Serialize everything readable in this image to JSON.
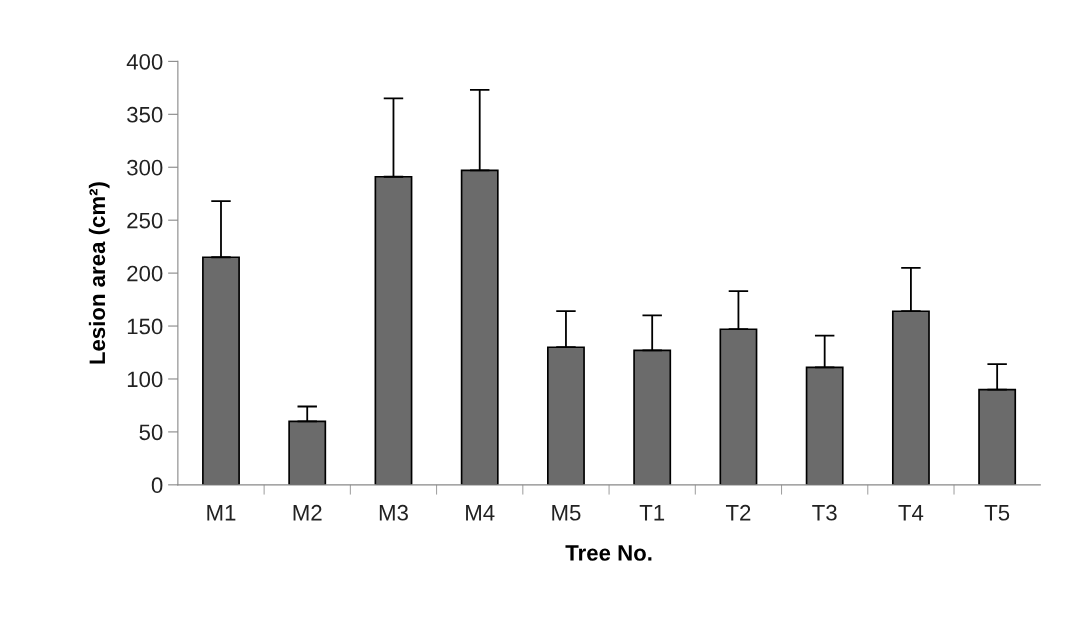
{
  "chart_data": {
    "type": "bar",
    "xlabel": "Tree No.",
    "ylabel": "Lesion area (cm²)",
    "categories": [
      "M1",
      "M2",
      "M3",
      "M4",
      "M5",
      "T1",
      "T2",
      "T3",
      "T4",
      "T5"
    ],
    "values": [
      215,
      60,
      291,
      297,
      130,
      127,
      147,
      111,
      164,
      90
    ],
    "errors": [
      [
        215,
        268
      ],
      [
        60,
        74
      ],
      [
        291,
        365
      ],
      [
        297,
        373
      ],
      [
        130,
        164
      ],
      [
        127,
        160
      ],
      [
        147,
        183
      ],
      [
        111,
        141
      ],
      [
        164,
        205
      ],
      [
        90,
        114
      ]
    ],
    "color": "#6b6b6b",
    "ylim": [
      0,
      400
    ],
    "yticks": [
      0,
      50,
      100,
      150,
      200,
      250,
      300,
      350,
      400
    ],
    "grid": false,
    "legend": false
  }
}
